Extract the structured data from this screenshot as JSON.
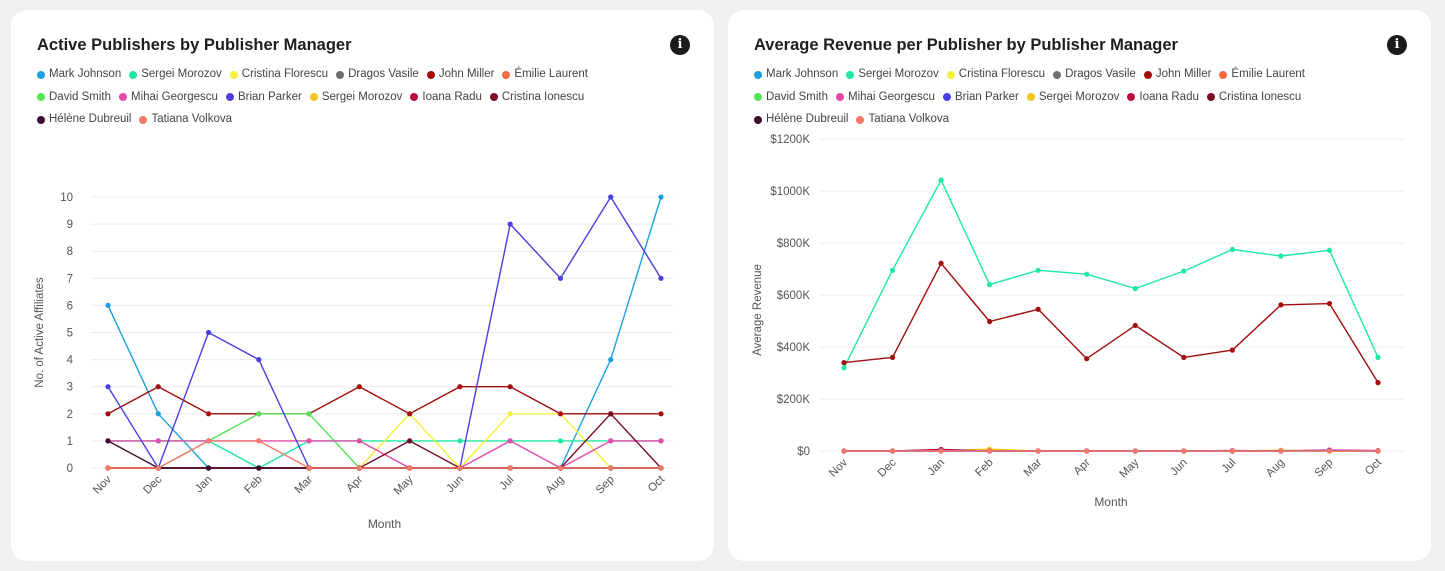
{
  "charts": [
    {
      "id": "left",
      "title": "Active Publishers by Publisher Manager",
      "info_icon": "info-icon",
      "legend": [
        {
          "name": "Mark Johnson",
          "color": "#1ba0e2"
        },
        {
          "name": "Sergei Morozov",
          "color": "#1de9a5"
        },
        {
          "name": "Cristina Florescu",
          "color": "#f2f23a"
        },
        {
          "name": "Dragos Vasile",
          "color": "#6e6e6e"
        },
        {
          "name": "John Miller",
          "color": "#a30d0d"
        },
        {
          "name": "Émilie Laurent",
          "color": "#f26a42"
        },
        {
          "name": "David Smith",
          "color": "#54e354"
        },
        {
          "name": "Mihai Georgescu",
          "color": "#e64aa8"
        },
        {
          "name": "Brian Parker",
          "color": "#4a3fe0"
        },
        {
          "name": "Sergei Morozov",
          "color": "#f2c21d"
        },
        {
          "name": "Ioana Radu",
          "color": "#b80d3e"
        },
        {
          "name": "Cristina Ionescu",
          "color": "#7a0d2a"
        },
        {
          "name": "Hélène Dubreuil",
          "color": "#3d0d33"
        },
        {
          "name": "Tatiana Volkova",
          "color": "#f27a6a"
        }
      ],
      "chart_data": {
        "type": "line",
        "title": "Active Publishers by Publisher Manager",
        "xlabel": "Month",
        "ylabel": "No. of Active Affiliates",
        "ylim": [
          0,
          10
        ],
        "yticks": [
          "0",
          "1",
          "2",
          "3",
          "4",
          "5",
          "6",
          "7",
          "8",
          "9",
          "10"
        ],
        "categories": [
          "Nov",
          "Dec",
          "Jan",
          "Feb",
          "Mar",
          "Apr",
          "May",
          "Jun",
          "Jul",
          "Aug",
          "Sep",
          "Oct"
        ],
        "grid": true,
        "legend_position": "top-left",
        "series": [
          {
            "name": "Mark Johnson",
            "color": "#1ba0e2",
            "values": [
              6,
              2,
              0,
              0,
              0,
              0,
              0,
              0,
              0,
              0,
              4,
              10
            ]
          },
          {
            "name": "Sergei Morozov",
            "color": "#1de9a5",
            "values": [
              1,
              1,
              1,
              0,
              1,
              1,
              1,
              1,
              1,
              1,
              1,
              1
            ]
          },
          {
            "name": "Cristina Florescu",
            "color": "#f2f23a",
            "values": [
              0,
              0,
              0,
              0,
              0,
              0,
              2,
              0,
              2,
              2,
              0,
              0
            ]
          },
          {
            "name": "Dragos Vasile",
            "color": "#6e6e6e",
            "values": [
              0,
              0,
              0,
              0,
              0,
              0,
              0,
              0,
              0,
              0,
              0,
              0
            ]
          },
          {
            "name": "John Miller",
            "color": "#a30d0d",
            "values": [
              2,
              3,
              2,
              2,
              2,
              3,
              2,
              3,
              3,
              2,
              2,
              2
            ]
          },
          {
            "name": "Émilie Laurent",
            "color": "#f26a42",
            "values": [
              0,
              0,
              0,
              0,
              0,
              0,
              0,
              0,
              0,
              0,
              0,
              0
            ]
          },
          {
            "name": "David Smith",
            "color": "#54e354",
            "values": [
              0,
              0,
              1,
              2,
              2,
              0,
              0,
              0,
              0,
              0,
              0,
              0
            ]
          },
          {
            "name": "Mihai Georgescu",
            "color": "#e64aa8",
            "values": [
              1,
              1,
              1,
              1,
              1,
              1,
              0,
              0,
              1,
              0,
              1,
              1
            ]
          },
          {
            "name": "Brian Parker",
            "color": "#4a3fe0",
            "values": [
              3,
              0,
              5,
              4,
              0,
              0,
              0,
              0,
              9,
              7,
              10,
              7
            ]
          },
          {
            "name": "Sergei Morozov",
            "color": "#f2c21d",
            "values": [
              0,
              0,
              0,
              0,
              0,
              0,
              0,
              0,
              0,
              0,
              0,
              0
            ]
          },
          {
            "name": "Ioana Radu",
            "color": "#b80d3e",
            "values": [
              0,
              0,
              0,
              0,
              0,
              0,
              0,
              0,
              0,
              0,
              0,
              0
            ]
          },
          {
            "name": "Cristina Ionescu",
            "color": "#7a0d2a",
            "values": [
              0,
              0,
              0,
              0,
              0,
              0,
              1,
              0,
              0,
              0,
              2,
              0
            ]
          },
          {
            "name": "Hélène Dubreuil",
            "color": "#3d0d33",
            "values": [
              1,
              0,
              0,
              0,
              0,
              0,
              0,
              0,
              0,
              0,
              0,
              0
            ]
          },
          {
            "name": "Tatiana Volkova",
            "color": "#f27a6a",
            "values": [
              0,
              0,
              1,
              1,
              0,
              0,
              0,
              0,
              0,
              0,
              0,
              0
            ]
          }
        ]
      }
    },
    {
      "id": "right",
      "title": "Average Revenue per Publisher by Publisher Manager",
      "info_icon": "info-icon",
      "legend": [
        {
          "name": "Mark Johnson",
          "color": "#1ba0e2"
        },
        {
          "name": "Sergei Morozov",
          "color": "#1de9a5"
        },
        {
          "name": "Cristina Florescu",
          "color": "#f2f23a"
        },
        {
          "name": "Dragos Vasile",
          "color": "#6e6e6e"
        },
        {
          "name": "John Miller",
          "color": "#a30d0d"
        },
        {
          "name": "Émilie Laurent",
          "color": "#f26a42"
        },
        {
          "name": "David Smith",
          "color": "#54e354"
        },
        {
          "name": "Mihai Georgescu",
          "color": "#e64aa8"
        },
        {
          "name": "Brian Parker",
          "color": "#4a3fe0"
        },
        {
          "name": "Sergei Morozov",
          "color": "#f2c21d"
        },
        {
          "name": "Ioana Radu",
          "color": "#b80d3e"
        },
        {
          "name": "Cristina Ionescu",
          "color": "#7a0d2a"
        },
        {
          "name": "Hélène Dubreuil",
          "color": "#3d0d33"
        },
        {
          "name": "Tatiana Volkova",
          "color": "#f27a6a"
        }
      ],
      "chart_data": {
        "type": "line",
        "title": "Average Revenue per Publisher by Publisher Manager",
        "xlabel": "Month",
        "ylabel": "Average Revenue",
        "ylim": [
          0,
          1200000
        ],
        "yticks": [
          "$0",
          "$200K",
          "$400K",
          "$600K",
          "$800K",
          "$1000K",
          "$1200K"
        ],
        "categories": [
          "Nov",
          "Dec",
          "Jan",
          "Feb",
          "Mar",
          "Apr",
          "May",
          "Jun",
          "Jul",
          "Aug",
          "Sep",
          "Oct"
        ],
        "grid": true,
        "legend_position": "top-left",
        "series": [
          {
            "name": "Sergei Morozov",
            "color": "#1de9a5",
            "values": [
              320000,
              695000,
              1042000,
              640000,
              695000,
              680000,
              625000,
              692000,
              775000,
              750000,
              772000,
              360000
            ]
          },
          {
            "name": "John Miller",
            "color": "#a30d0d",
            "values": [
              340000,
              360000,
              722000,
              498000,
              545000,
              355000,
              483000,
              360000,
              388000,
              562000,
              567000,
              263000
            ]
          },
          {
            "name": "Cristina Florescu",
            "color": "#f2f23a",
            "values": [
              0,
              0,
              0,
              8000,
              0,
              0,
              0,
              0,
              0,
              0,
              0,
              0
            ]
          },
          {
            "name": "Sergei Morozov",
            "color": "#f2c21d",
            "values": [
              0,
              0,
              0,
              6000,
              0,
              0,
              0,
              0,
              0,
              3000,
              0,
              0
            ]
          },
          {
            "name": "Émilie Laurent",
            "color": "#f26a42",
            "values": [
              0,
              0,
              4000,
              0,
              0,
              0,
              0,
              0,
              0,
              0,
              0,
              0
            ]
          },
          {
            "name": "Ioana Radu",
            "color": "#b80d3e",
            "values": [
              0,
              0,
              6000,
              0,
              0,
              0,
              0,
              0,
              0,
              0,
              3000,
              0
            ]
          },
          {
            "name": "Mihai Georgescu",
            "color": "#e64aa8",
            "values": [
              0,
              0,
              0,
              0,
              0,
              0,
              0,
              0,
              2000,
              0,
              4000,
              2000
            ]
          },
          {
            "name": "Brian Parker",
            "color": "#4a3fe0",
            "values": [
              0,
              0,
              0,
              0,
              0,
              0,
              0,
              0,
              0,
              0,
              2000,
              0
            ]
          },
          {
            "name": "Tatiana Volkova",
            "color": "#f27a6a",
            "values": [
              0,
              0,
              0,
              0,
              0,
              0,
              0,
              0,
              0,
              0,
              0,
              0
            ]
          }
        ]
      }
    }
  ]
}
